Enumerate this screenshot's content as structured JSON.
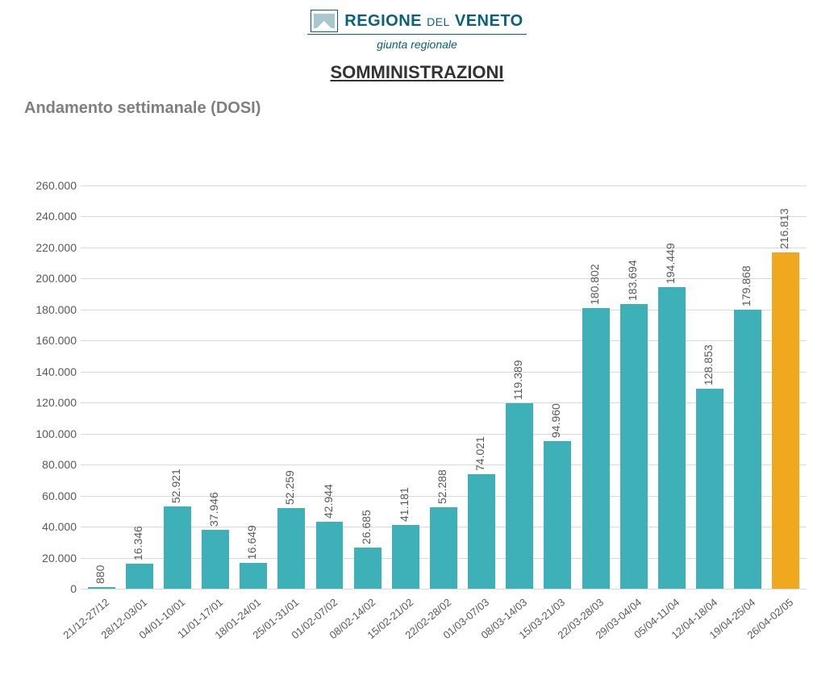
{
  "header": {
    "org_name_1": "REGIONE",
    "org_name_del": "DEL",
    "org_name_2": "VENETO",
    "subtitle": "giunta regionale",
    "title": "SOMMINISTRAZIONI",
    "title_fontsize": 22,
    "title_color": "#333333",
    "brand_color": "#0a6179"
  },
  "chart": {
    "type": "bar",
    "subtitle": "Andamento settimanale (DOSI)",
    "subtitle_fontsize": 20,
    "subtitle_color": "#7f7f7f",
    "ymin": 0,
    "ymax": 260000,
    "ytick_step": 20000,
    "ytick_labels": [
      "0",
      "20.000",
      "40.000",
      "60.000",
      "80.000",
      "100.000",
      "120.000",
      "140.000",
      "160.000",
      "180.000",
      "200.000",
      "220.000",
      "240.000",
      "260.000"
    ],
    "axis_label_fontsize": 14,
    "axis_label_color": "#595959",
    "grid_color": "#d9d9d9",
    "bar_label_fontsize": 14,
    "bar_label_color": "#595959",
    "bar_width_ratio": 0.72,
    "background_color": "#ffffff",
    "default_bar_color": "#3eb1b8",
    "highlight_bar_color": "#f0a91f",
    "categories": [
      "21/12-27/12",
      "28/12-03/01",
      "04/01-10/01",
      "11/01-17/01",
      "18/01-24/01",
      "25/01-31/01",
      "01/02-07/02",
      "08/02-14/02",
      "15/02-21/02",
      "22/02-28/02",
      "01/03-07/03",
      "08/03-14/03",
      "15/03-21/03",
      "22/03-28/03",
      "29/03-04/04",
      "05/04-11/04",
      "12/04-18/04",
      "19/04-25/04",
      "26/04-02/05"
    ],
    "values": [
      880,
      16346,
      52921,
      37946,
      16649,
      52259,
      42944,
      26685,
      41181,
      52288,
      74021,
      119389,
      94960,
      180802,
      183694,
      194449,
      128853,
      179868,
      216813
    ],
    "value_labels": [
      "880",
      "16.346",
      "52.921",
      "37.946",
      "16.649",
      "52.259",
      "42.944",
      "26.685",
      "41.181",
      "52.288",
      "74.021",
      "119.389",
      "94.960",
      "180.802",
      "183.694",
      "194.449",
      "128.853",
      "179.868",
      "216.813"
    ],
    "highlight_index": 18
  }
}
